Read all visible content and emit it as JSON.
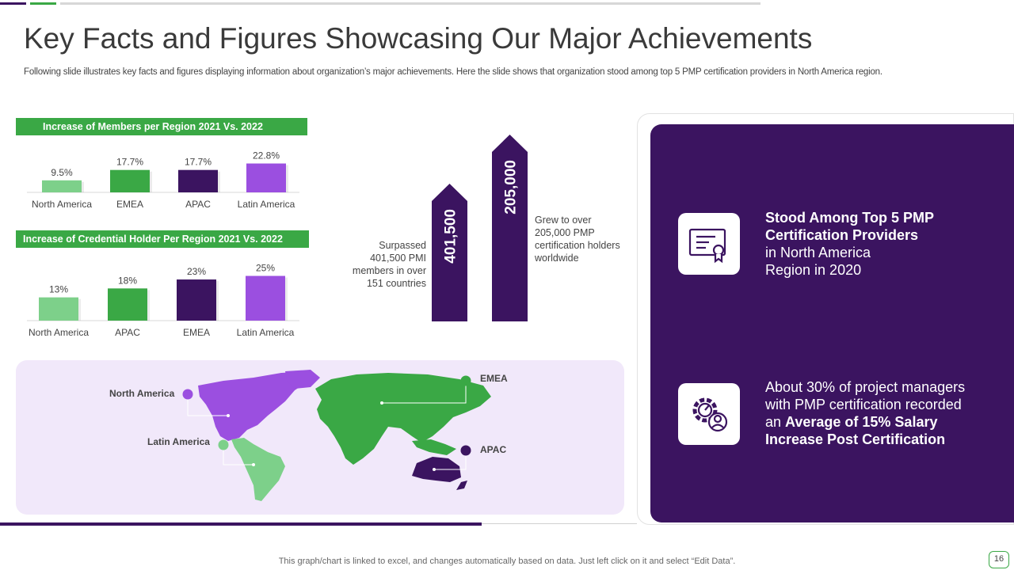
{
  "title": "Key Facts and Figures Showcasing Our Major Achievements",
  "subtitle": "Following slide illustrates key facts and figures displaying information about organization’s major achievements. Here the slide shows that organization stood among top 5 PMP certification providers in North America region.",
  "colors": {
    "dark_purple": "#3b1460",
    "green": "#3aa845",
    "light_green": "#7dd08a",
    "violet": "#9b4fe0",
    "panel_lilac": "#f1e8fa"
  },
  "chart_data": [
    {
      "type": "bar",
      "title": "Increase of Members per Region 2021  Vs. 2022",
      "categories": [
        "North America",
        "EMEA",
        "APAC",
        "Latin America"
      ],
      "values": [
        9.5,
        17.7,
        17.7,
        22.8
      ],
      "data_labels": [
        "9.5%",
        "17.7%",
        "17.7%",
        "22.8%"
      ],
      "bar_colors": [
        "#7dd08a",
        "#3aa845",
        "#3b1460",
        "#9b4fe0"
      ],
      "ylim": [
        0,
        25
      ],
      "xlabel": "",
      "ylabel": "",
      "grid": false,
      "legend": false
    },
    {
      "type": "bar",
      "title": "Increase of Credential Holder Per Region 2021  Vs. 2022",
      "categories": [
        "North America",
        "APAC",
        "EMEA",
        "Latin America"
      ],
      "values": [
        13,
        18,
        23,
        25
      ],
      "data_labels": [
        "13%",
        "18%",
        "23%",
        "25%"
      ],
      "bar_colors": [
        "#7dd08a",
        "#3aa845",
        "#3b1460",
        "#9b4fe0"
      ],
      "ylim": [
        0,
        27
      ],
      "xlabel": "",
      "ylabel": "",
      "grid": false,
      "legend": false
    },
    {
      "type": "bar",
      "title": "",
      "categories": [
        "",
        ""
      ],
      "values": [
        401500,
        205000
      ],
      "data_labels": [
        "401,500",
        "205,000"
      ],
      "bar_colors": [
        "#3b1460",
        "#3b1460"
      ],
      "xlabel": "",
      "ylabel": "",
      "grid": false,
      "legend": false
    }
  ],
  "arrow_notes": {
    "left": "Surpassed 401,500 PMI members in over 151 countries",
    "right": "Grew to over 205,000 PMP certification holders worldwide"
  },
  "map": {
    "regions": [
      {
        "name": "North America",
        "color": "#9b4fe0"
      },
      {
        "name": "Latin America",
        "color": "#7dd08a"
      },
      {
        "name": "EMEA",
        "color": "#3aa845"
      },
      {
        "name": "APAC",
        "color": "#3b1460"
      }
    ]
  },
  "facts": [
    {
      "icon": "certificate-icon",
      "bold": "Stood Among Top 5 PMP Certification Providers",
      "line3": "in North America",
      "line4": "Region in 2020"
    },
    {
      "icon": "gear-person-icon",
      "line1": "About 30% of project managers",
      "line2": "with PMP certification recorded",
      "line3_prefix": "an ",
      "line3_bold": "Average of 15% Salary",
      "line4_bold": "Increase Post Certification"
    }
  ],
  "footer": "This graph/chart is linked to excel,  and changes automatically based on data. Just left click on it and select “Edit Data”.",
  "page_number": "16"
}
